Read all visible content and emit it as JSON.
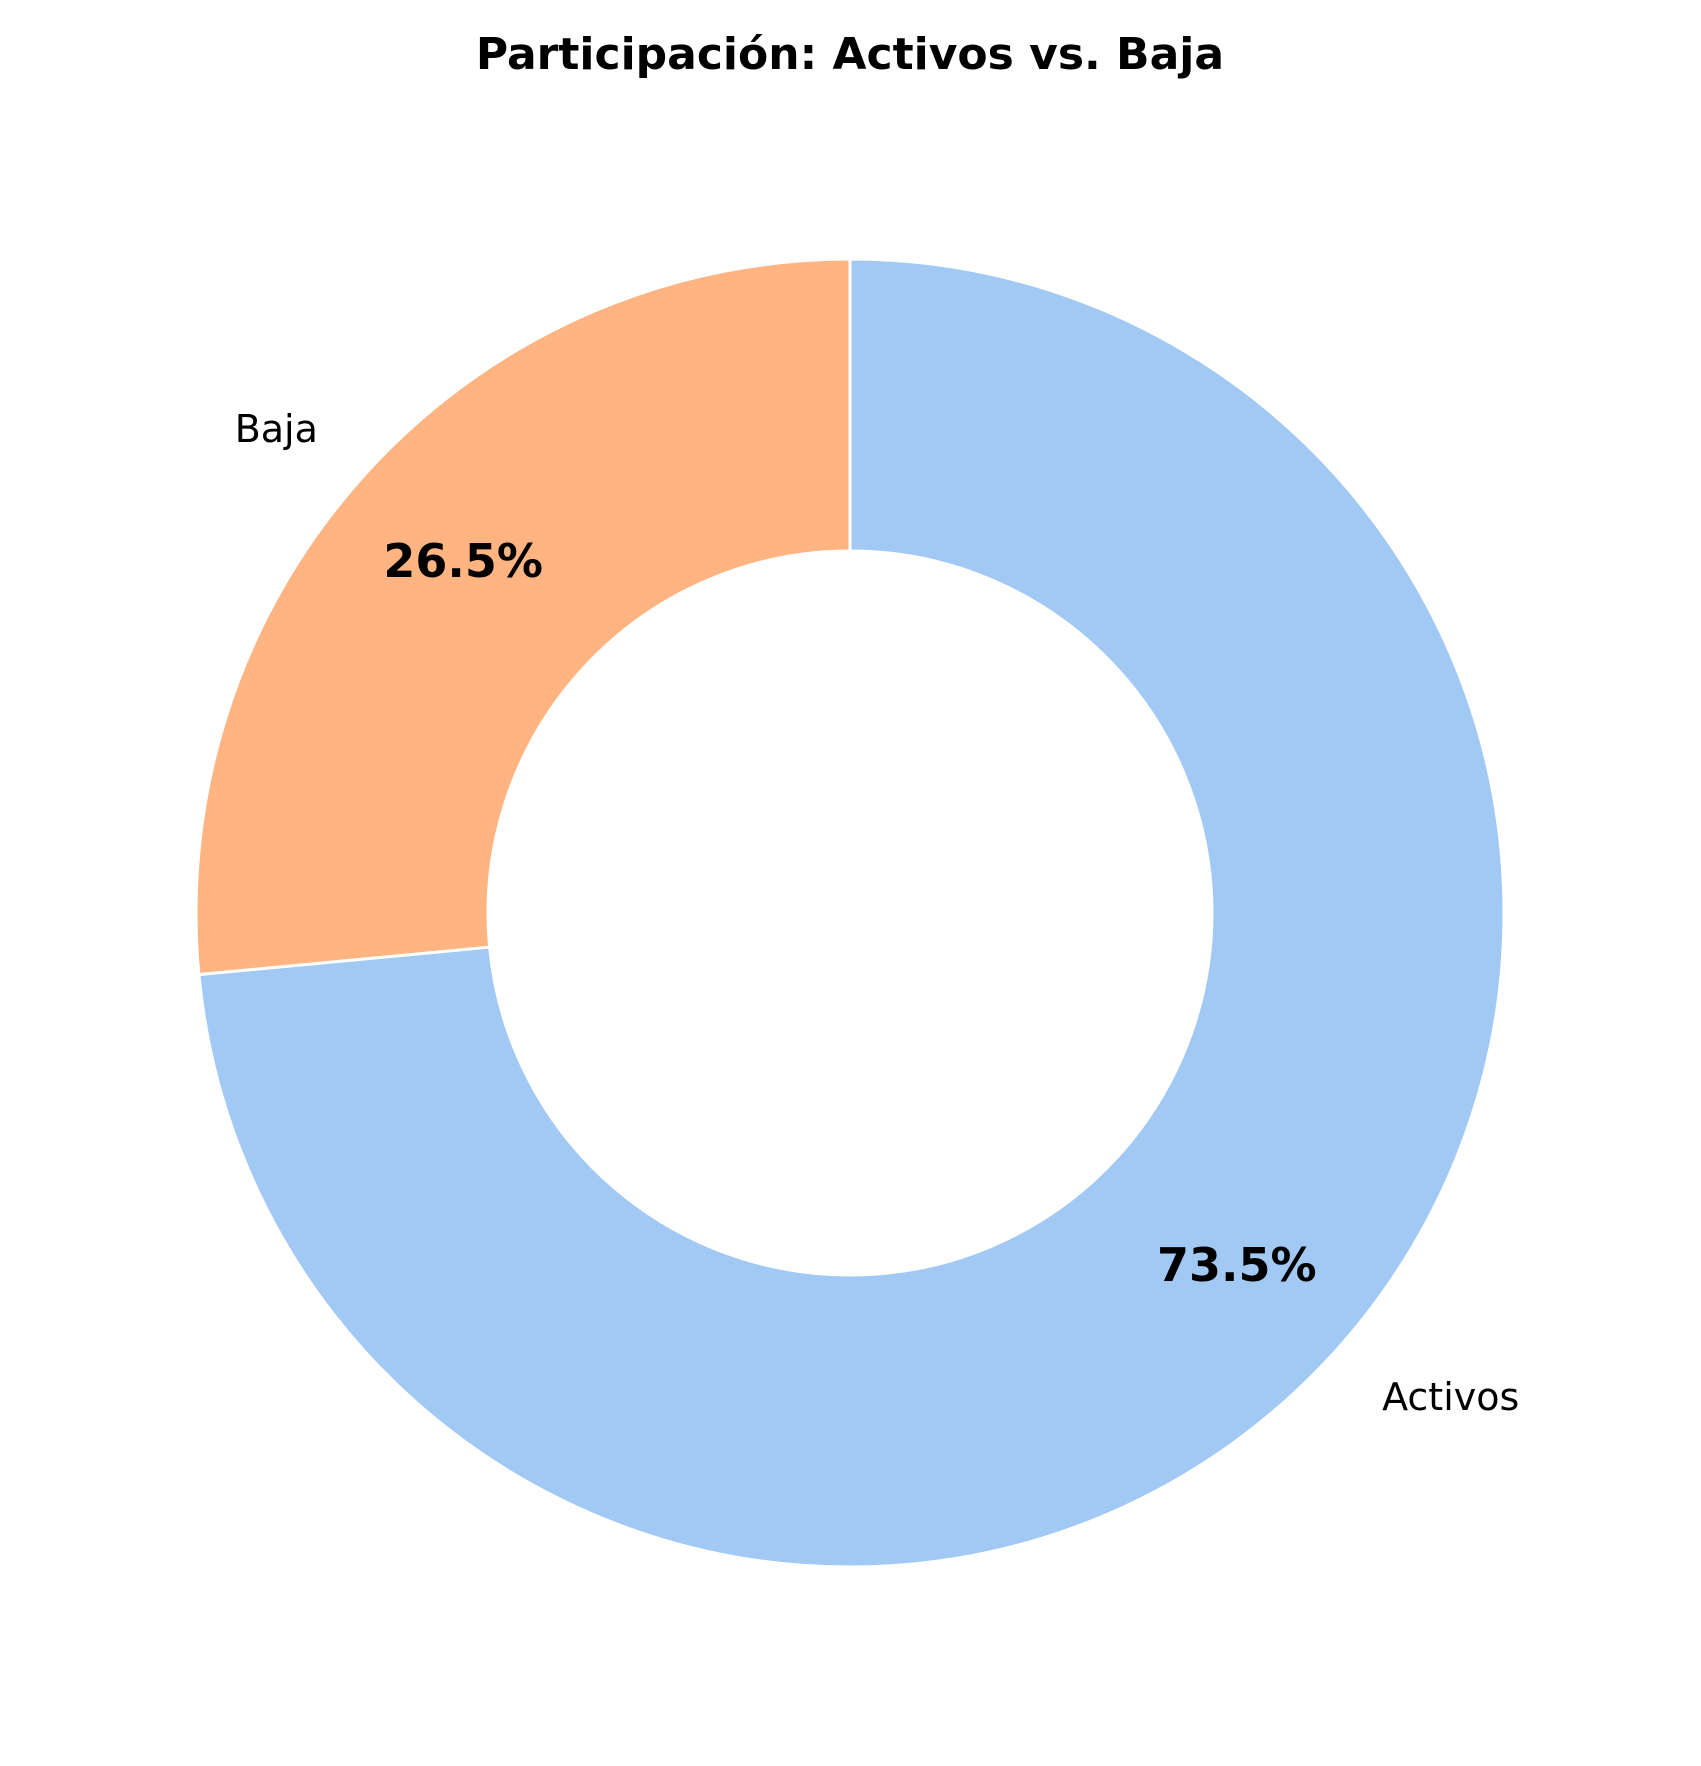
{
  "chart_data": {
    "type": "pie",
    "variant": "donut",
    "title": "Participación: Activos vs. Baja",
    "start_angle_deg": 90,
    "direction": "clockwise",
    "slices": [
      {
        "label": "Activos",
        "value": 73.5,
        "pct_label": "73.5%",
        "color": "#a1c9f4"
      },
      {
        "label": "Baja",
        "value": 26.5,
        "pct_label": "26.5%",
        "color": "#ffb482"
      }
    ],
    "edge_color": "#ffffff"
  }
}
